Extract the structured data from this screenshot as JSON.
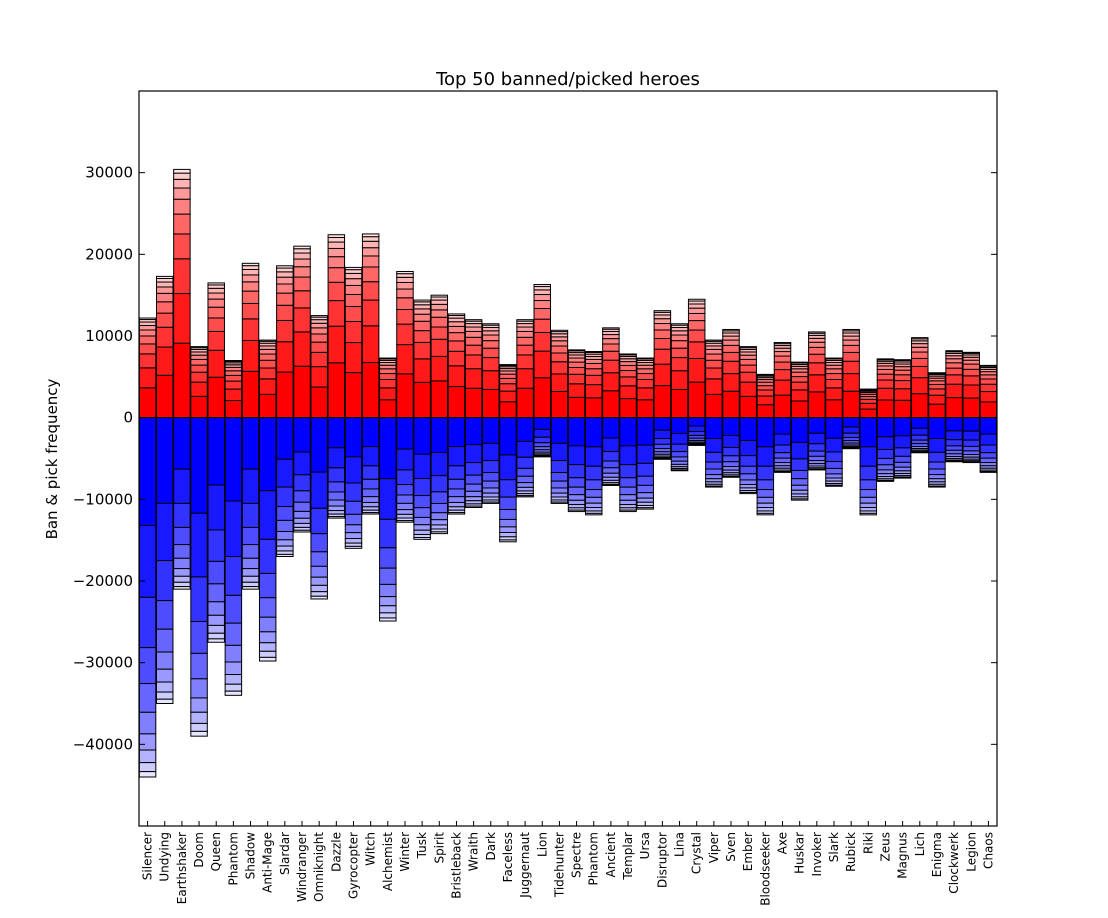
{
  "chart_data": {
    "type": "bar",
    "subtype": "stacked-diverging",
    "title": "Top 50 banned/picked heroes",
    "xlabel": "",
    "ylabel": "Ban & pick frequency",
    "ylim": [
      -50000,
      40000
    ],
    "yticks": [
      -40000,
      -30000,
      -20000,
      -10000,
      0,
      10000,
      20000,
      30000
    ],
    "grid": false,
    "legend": "none",
    "colors": {
      "positive": "#ff0000",
      "negative": "#0000ff",
      "segment_edge": "#000000"
    },
    "categories": [
      "Silencer",
      "Undying",
      "Earthshaker",
      "Doom",
      "Queen",
      "Phantom",
      "Shadow",
      "Anti-Mage",
      "Slardar",
      "Windranger",
      "Omniknight",
      "Dazzle",
      "Gyrocopter",
      "Witch",
      "Alchemist",
      "Winter",
      "Tusk",
      "Spirit",
      "Bristleback",
      "Wraith",
      "Dark",
      "Faceless",
      "Juggernaut",
      "Lion",
      "Tidehunter",
      "Spectre",
      "Phantom",
      "Ancient",
      "Templar",
      "Ursa",
      "Disruptor",
      "Lina",
      "Crystal",
      "Viper",
      "Sven",
      "Ember",
      "Bloodseeker",
      "Axe",
      "Huskar",
      "Invoker",
      "Slark",
      "Rubick",
      "Riki",
      "Zeus",
      "Magnus",
      "Lich",
      "Enigma",
      "Clockwerk",
      "Legion",
      "Chaos"
    ],
    "totals_positive": [
      12200,
      17300,
      30400,
      8700,
      16500,
      7000,
      18900,
      9500,
      18600,
      21000,
      12500,
      22400,
      18400,
      22500,
      7300,
      17900,
      14400,
      15000,
      12700,
      12000,
      11500,
      6500,
      12000,
      16300,
      10700,
      8300,
      8100,
      11000,
      7800,
      7300,
      13100,
      11500,
      14500,
      9500,
      10800,
      8700,
      5300,
      9200,
      6800,
      10500,
      7300,
      10800,
      3500,
      7200,
      7100,
      9800,
      5500,
      8200,
      8000,
      6400
    ],
    "totals_negative": [
      -44000,
      -35000,
      -21000,
      -39000,
      -27500,
      -34000,
      -21000,
      -29800,
      -17000,
      -14000,
      -22200,
      -12300,
      -16000,
      -11800,
      -24900,
      -12800,
      -14900,
      -14200,
      -11800,
      -11000,
      -10500,
      -15200,
      -9700,
      -4800,
      -10500,
      -11500,
      -11900,
      -8300,
      -11500,
      -11200,
      -5100,
      -6500,
      -3400,
      -8500,
      -7300,
      -9300,
      -11900,
      -6700,
      -10100,
      -6400,
      -8400,
      -3800,
      -11900,
      -7800,
      -7400,
      -4300,
      -8500,
      -5400,
      -5500,
      -6700
    ]
  }
}
